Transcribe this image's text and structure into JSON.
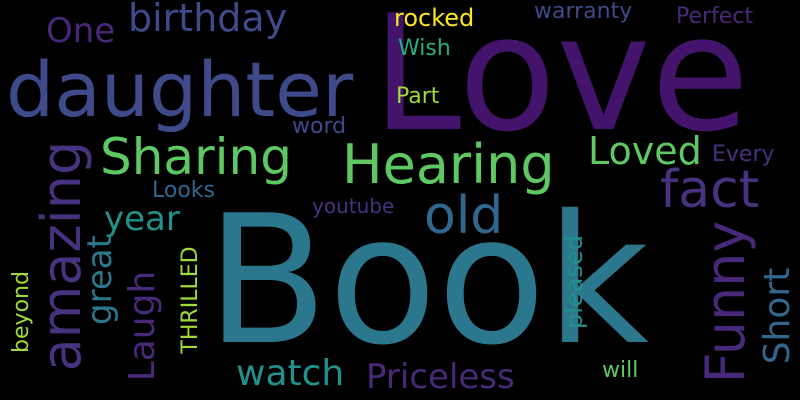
{
  "word_cloud": {
    "background": "#000000",
    "words": {
      "love": "Love",
      "book": "Book",
      "daughter": "daughter",
      "hearing": "Hearing",
      "sharing": "Sharing",
      "amazing": "amazing",
      "funny": "Funny",
      "fact": "fact",
      "old": "old",
      "birthday": "birthday",
      "one": "One",
      "loved": "Loved",
      "year": "year",
      "great": "great",
      "laugh": "Laugh",
      "short": "Short",
      "watch": "watch",
      "priceless": "Priceless",
      "rocked": "rocked",
      "warranty": "warranty",
      "perfect": "Perfect",
      "wish": "Wish",
      "part": "Part",
      "word": "word",
      "every": "Every",
      "looks": "Looks",
      "youtube": "youtube",
      "thrilled": "THRILLED",
      "pleased": "pleased",
      "will": "will",
      "beyond": "beyond"
    },
    "palette": {
      "purple_deep": "#44146d",
      "purple": "#482878",
      "purple_mid": "#46327e",
      "indigo": "#3e4a89",
      "blue": "#31668d",
      "teal_blue": "#2b788e",
      "teal": "#21918c",
      "green_teal": "#27ad81",
      "green": "#5ec962",
      "lime": "#9fda3a",
      "yellow": "#fde725"
    }
  }
}
